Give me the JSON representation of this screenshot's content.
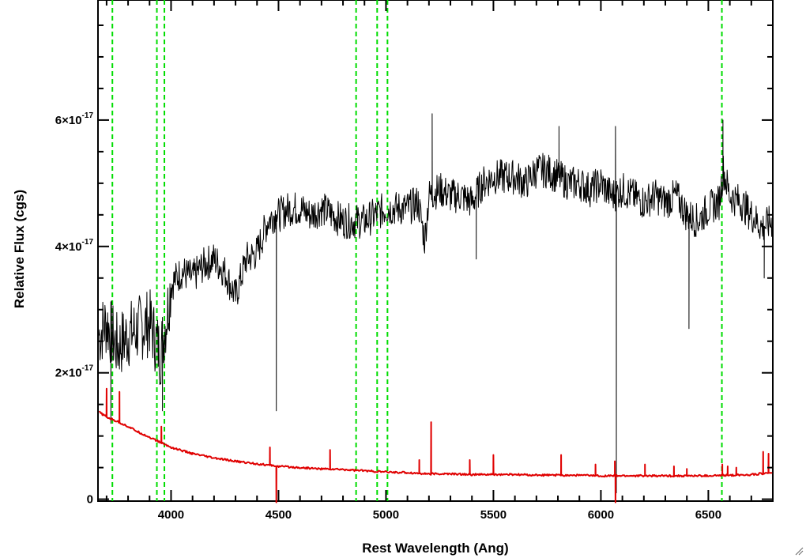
{
  "chart_data": {
    "type": "line",
    "title": "",
    "xlabel": "Rest Wavelength (Ang)",
    "ylabel": "Relative Flux (cgs)",
    "xlim": [
      3660,
      6800
    ],
    "ylim": [
      -3e-19,
      7.9e-17
    ],
    "x_ticks": [
      {
        "value": 4000,
        "label": "4000"
      },
      {
        "value": 4500,
        "label": "4500"
      },
      {
        "value": 5000,
        "label": "5000"
      },
      {
        "value": 5500,
        "label": "5500"
      },
      {
        "value": 6000,
        "label": "6000"
      },
      {
        "value": 6500,
        "label": "6500"
      }
    ],
    "y_ticks": [
      {
        "value": 0,
        "mantissa": "0",
        "exponent": ""
      },
      {
        "value": 2e-17,
        "mantissa": "2×10",
        "exponent": "-17"
      },
      {
        "value": 4e-17,
        "mantissa": "4×10",
        "exponent": "-17"
      },
      {
        "value": 6e-17,
        "mantissa": "6×10",
        "exponent": "-17"
      }
    ],
    "grid": false,
    "series": [
      {
        "color": "#000000",
        "x": [
          3665,
          3700,
          3750,
          3800,
          3850,
          3900,
          3950,
          3980,
          4000,
          4050,
          4100,
          4150,
          4200,
          4250,
          4300,
          4350,
          4400,
          4450,
          4480,
          4500,
          4550,
          4600,
          4650,
          4700,
          4750,
          4800,
          4850,
          4900,
          4950,
          5000,
          5050,
          5100,
          5150,
          5180,
          5200,
          5250,
          5300,
          5350,
          5400,
          5450,
          5500,
          5550,
          5600,
          5650,
          5700,
          5750,
          5800,
          5850,
          5900,
          5950,
          6000,
          6050,
          6100,
          6150,
          6200,
          6250,
          6300,
          6350,
          6400,
          6450,
          6500,
          6550,
          6570,
          6600,
          6650,
          6700,
          6750,
          6800
        ],
        "values": [
          2.6e-17,
          2.8e-17,
          2.4e-17,
          2.6e-17,
          2.7e-17,
          2.8e-17,
          2.3e-17,
          2.9e-17,
          3.4e-17,
          3.6e-17,
          3.5e-17,
          3.7e-17,
          3.8e-17,
          3.6e-17,
          3.2e-17,
          3.8e-17,
          3.9e-17,
          4.4e-17,
          4.5e-17,
          4.5e-17,
          4.6e-17,
          4.6e-17,
          4.5e-17,
          4.6e-17,
          4.5e-17,
          4.4e-17,
          4.4e-17,
          4.4e-17,
          4.5e-17,
          4.6e-17,
          4.6e-17,
          4.6e-17,
          4.7e-17,
          4.1e-17,
          4.8e-17,
          4.9e-17,
          4.8e-17,
          4.8e-17,
          4.7e-17,
          5e-17,
          5.1e-17,
          5.1e-17,
          5.1e-17,
          5e-17,
          5.2e-17,
          5.2e-17,
          5.1e-17,
          5e-17,
          5e-17,
          4.9e-17,
          5e-17,
          4.8e-17,
          4.9e-17,
          4.8e-17,
          4.7e-17,
          4.8e-17,
          4.7e-17,
          4.8e-17,
          4.5e-17,
          4.4e-17,
          4.6e-17,
          4.7e-17,
          5.2e-17,
          4.8e-17,
          4.7e-17,
          4.5e-17,
          4.3e-17,
          4.4e-17
        ],
        "spikes": [
          {
            "x": 3720,
            "value": 1.2e-17
          },
          {
            "x": 3960,
            "value": 1.4e-17
          },
          {
            "x": 4490,
            "value": 1.4e-17
          },
          {
            "x": 5215,
            "value": 6.1e-17
          },
          {
            "x": 5420,
            "value": 3.8e-17
          },
          {
            "x": 5805,
            "value": 5.9e-17
          },
          {
            "x": 6068,
            "value": 5.9e-17
          },
          {
            "x": 6072,
            "value": 1e-18
          },
          {
            "x": 6410,
            "value": 2.7e-17
          },
          {
            "x": 6568,
            "value": 6e-17
          },
          {
            "x": 6760,
            "value": 3.5e-17
          }
        ]
      },
      {
        "color": "#e00000",
        "x": [
          3665,
          3700,
          3750,
          3800,
          3850,
          3900,
          3950,
          4000,
          4100,
          4200,
          4300,
          4400,
          4500,
          4600,
          4700,
          4800,
          4900,
          5000,
          5100,
          5200,
          5300,
          5400,
          5500,
          5600,
          5700,
          5800,
          5900,
          6000,
          6100,
          6200,
          6300,
          6400,
          6500,
          6600,
          6700,
          6800
        ],
        "values": [
          1.38e-17,
          1.3e-17,
          1.23e-17,
          1.15e-17,
          1.06e-17,
          9.8e-18,
          9e-18,
          8.2e-18,
          7.2e-18,
          6.5e-18,
          6e-18,
          5.6e-18,
          5.2e-18,
          5e-18,
          4.8e-18,
          4.7e-18,
          4.5e-18,
          4.3e-18,
          4.2e-18,
          4e-18,
          4e-18,
          3.9e-18,
          3.9e-18,
          3.9e-18,
          3.8e-18,
          3.8e-18,
          3.8e-18,
          3.7e-18,
          3.7e-18,
          3.7e-18,
          3.7e-18,
          3.7e-18,
          3.7e-18,
          3.8e-18,
          3.9e-18,
          4.2e-18
        ],
        "spikes": [
          {
            "x": 3700,
            "value": 1.75e-17
          },
          {
            "x": 3760,
            "value": 1.7e-17
          },
          {
            "x": 3955,
            "value": 1.15e-17
          },
          {
            "x": 4460,
            "value": 8.2e-18
          },
          {
            "x": 4490,
            "value": -5e-19
          },
          {
            "x": 4740,
            "value": 7.8e-18
          },
          {
            "x": 5155,
            "value": 6.2e-18
          },
          {
            "x": 5210,
            "value": 1.22e-17
          },
          {
            "x": 5390,
            "value": 6.2e-18
          },
          {
            "x": 5500,
            "value": 7e-18
          },
          {
            "x": 5815,
            "value": 7e-18
          },
          {
            "x": 5975,
            "value": 5.5e-18
          },
          {
            "x": 6065,
            "value": 6e-18
          },
          {
            "x": 6068,
            "value": -5e-19
          },
          {
            "x": 6205,
            "value": 5.5e-18
          },
          {
            "x": 6340,
            "value": 5.2e-18
          },
          {
            "x": 6400,
            "value": 4.8e-18
          },
          {
            "x": 6565,
            "value": 5.5e-18
          },
          {
            "x": 6590,
            "value": 5.2e-18
          },
          {
            "x": 6630,
            "value": 5e-18
          },
          {
            "x": 6755,
            "value": 7.5e-18
          },
          {
            "x": 6780,
            "value": 7.2e-18
          }
        ]
      }
    ],
    "vertical_lines": {
      "color": "#00dd00",
      "style": "dashed",
      "x": [
        3727,
        3934,
        3969,
        4861,
        4959,
        5007,
        6563
      ]
    }
  },
  "window": {
    "resize_grip_icon": "resize-grip-icon"
  }
}
